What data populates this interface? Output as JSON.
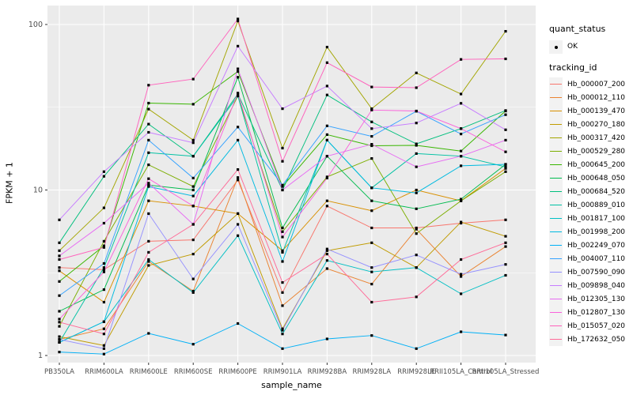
{
  "chart_data": {
    "type": "line",
    "title": "",
    "xlabel": "sample_name",
    "ylabel": "FPKM + 1",
    "y_scale": "log10",
    "ylim": [
      0.9,
      135
    ],
    "y_ticks": [
      1,
      10,
      100
    ],
    "grid": "on",
    "legend_position": "right",
    "x_categories": [
      "PB350LA",
      "RRIM600LA",
      "RRIM600LE",
      "RRIM600SE",
      "RRIM600PE",
      "RRIM901LA",
      "RRIM928BA",
      "RRIM928LA",
      "RRIM928LE",
      "RRII105LA_Control",
      "RRII105LA_Stressed"
    ],
    "legend": {
      "quant_status_title": "quant_status",
      "quant_status_ok_label": "OK",
      "tracking_id_title": "tracking_id"
    },
    "series": [
      {
        "name": "Hb_000007_200",
        "color": "#F8766D",
        "values": [
          3.4,
          3.3,
          4.9,
          5.0,
          11.5,
          2.4,
          8.0,
          5.9,
          5.9,
          6.3,
          6.6
        ]
      },
      {
        "name": "Hb_000012_110",
        "color": "#EA8331",
        "values": [
          1.25,
          1.45,
          3.7,
          2.45,
          11.9,
          2.0,
          3.35,
          2.7,
          5.8,
          3.0,
          4.55
        ]
      },
      {
        "name": "Hb_000139_470",
        "color": "#D89000",
        "values": [
          3.25,
          2.1,
          8.6,
          8.0,
          7.2,
          4.3,
          8.6,
          7.5,
          10.0,
          8.6,
          13.5
        ]
      },
      {
        "name": "Hb_000270_180",
        "color": "#C09B00",
        "values": [
          1.3,
          1.15,
          3.5,
          4.1,
          7.2,
          1.45,
          4.3,
          4.8,
          3.4,
          6.4,
          5.25
        ]
      },
      {
        "name": "Hb_000317_420",
        "color": "#A3A500",
        "values": [
          4.3,
          7.8,
          30.8,
          20,
          105,
          17.9,
          73,
          31,
          51,
          38,
          91
        ]
      },
      {
        "name": "Hb_000529_280",
        "color": "#7CAE00",
        "values": [
          1.5,
          4.9,
          14.2,
          10.5,
          37,
          5.6,
          12,
          15.5,
          5.45,
          8.6,
          12.9
        ]
      },
      {
        "name": "Hb_000645_200",
        "color": "#39B600",
        "values": [
          2.8,
          4.6,
          33.5,
          33,
          52,
          10.5,
          21.6,
          18.5,
          18.6,
          17.2,
          30
        ]
      },
      {
        "name": "Hb_000648_050",
        "color": "#00BB4E",
        "values": [
          1.85,
          2.5,
          10.7,
          10,
          48,
          5.9,
          16,
          8.6,
          7.7,
          8.8,
          14.3
        ]
      },
      {
        "name": "Hb_000684_520",
        "color": "#00BF7D",
        "values": [
          4.8,
          12.1,
          25,
          16,
          38,
          10,
          37.5,
          25.8,
          19,
          23.5,
          30.2
        ]
      },
      {
        "name": "Hb_000889_010",
        "color": "#00C1A3",
        "values": [
          1.2,
          3.4,
          16.8,
          16,
          37,
          4.2,
          20,
          10.3,
          16.6,
          16,
          13.8
        ]
      },
      {
        "name": "Hb_001817_100",
        "color": "#00BFC4",
        "values": [
          1.2,
          1.6,
          3.8,
          2.4,
          5.3,
          1.35,
          3.75,
          3.2,
          3.4,
          2.36,
          3.05
        ]
      },
      {
        "name": "Hb_001998_200",
        "color": "#00BAE0",
        "values": [
          1.2,
          1.6,
          10.5,
          9.2,
          20,
          3.7,
          20,
          10.3,
          9.6,
          14,
          14.3
        ]
      },
      {
        "name": "Hb_002249_070",
        "color": "#00B0F6",
        "values": [
          1.05,
          1.02,
          1.36,
          1.17,
          1.56,
          1.1,
          1.26,
          1.32,
          1.1,
          1.39,
          1.33
        ]
      },
      {
        "name": "Hb_004007_110",
        "color": "#35A2FF",
        "values": [
          2.3,
          3.6,
          20,
          11.8,
          24,
          10.7,
          24.4,
          21.1,
          29.9,
          21.8,
          28.5
        ]
      },
      {
        "name": "Hb_007590_090",
        "color": "#9590FF",
        "values": [
          1.25,
          1.1,
          7.2,
          2.9,
          6.2,
          1.42,
          4.4,
          3.4,
          4.05,
          3.1,
          3.55
        ]
      },
      {
        "name": "Hb_009898_040",
        "color": "#C77CFF",
        "values": [
          6.6,
          12.9,
          22.3,
          19.3,
          74,
          31,
          42.5,
          23.5,
          25.4,
          33.4,
          23.1
        ]
      },
      {
        "name": "Hb_012305_130",
        "color": "#E76BF3",
        "values": [
          4.0,
          6.3,
          11.0,
          6.2,
          54,
          10.0,
          16,
          18.9,
          13.8,
          16.0,
          20
        ]
      },
      {
        "name": "Hb_012807_130",
        "color": "#FA62DB",
        "values": [
          1.66,
          3.2,
          11.7,
          8.0,
          38.5,
          5.2,
          11.8,
          30.4,
          30.0,
          23.5,
          17.0
        ]
      },
      {
        "name": "Hb_015057_020",
        "color": "#FF62BC",
        "values": [
          3.8,
          4.5,
          43,
          46.8,
          108,
          14.9,
          58.8,
          41.9,
          41.5,
          61.5,
          62
        ]
      },
      {
        "name": "Hb_172632_050",
        "color": "#FF6A98",
        "values": [
          1.59,
          1.35,
          4.2,
          6.2,
          13.3,
          2.76,
          4.1,
          2.1,
          2.26,
          3.8,
          4.8
        ]
      }
    ]
  },
  "style_colors": {
    "panel_bg": "#EBEBEB",
    "grid_major": "#FFFFFF",
    "grid_minor": "#FFFFFF",
    "point": "#000000",
    "tick": "#333333",
    "axis_text": "#4D4D4D",
    "legend_key_bg": "#F2F2F2"
  }
}
